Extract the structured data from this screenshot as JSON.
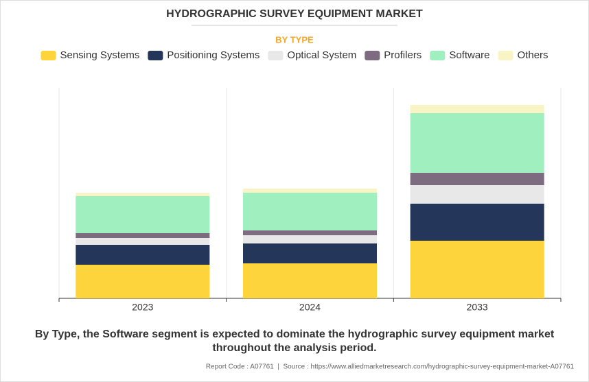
{
  "chart_data": {
    "type": "stacked-bar",
    "title": "HYDROGRAPHIC SURVEY EQUIPMENT MARKET",
    "subtitle": "BY TYPE",
    "categories": [
      "2023",
      "2024",
      "2033"
    ],
    "series": [
      {
        "name": "Sensing Systems",
        "color": "#fdd43b",
        "values": [
          49,
          51,
          84
        ]
      },
      {
        "name": "Positioning Systems",
        "color": "#243659",
        "values": [
          29,
          29,
          54
        ]
      },
      {
        "name": "Optical System",
        "color": "#e8e8e8",
        "values": [
          10,
          12,
          27
        ]
      },
      {
        "name": "Profilers",
        "color": "#7d6b80",
        "values": [
          7,
          7,
          18
        ]
      },
      {
        "name": "Software",
        "color": "#a0efbf",
        "values": [
          54,
          55,
          87
        ]
      },
      {
        "name": "Others",
        "color": "#f8f4c6",
        "values": [
          5,
          6,
          12
        ]
      }
    ],
    "ylim": [
      0,
      307
    ],
    "caption": [
      "By Type, the Software segment is expected to dominate the hydrographic survey equipment market",
      "throughout the analysis period."
    ],
    "source": "Report Code : A07761  |  Source : https://www.alliedmarketresearch.com/hydrographic-survey-equipment-market-A07761"
  }
}
